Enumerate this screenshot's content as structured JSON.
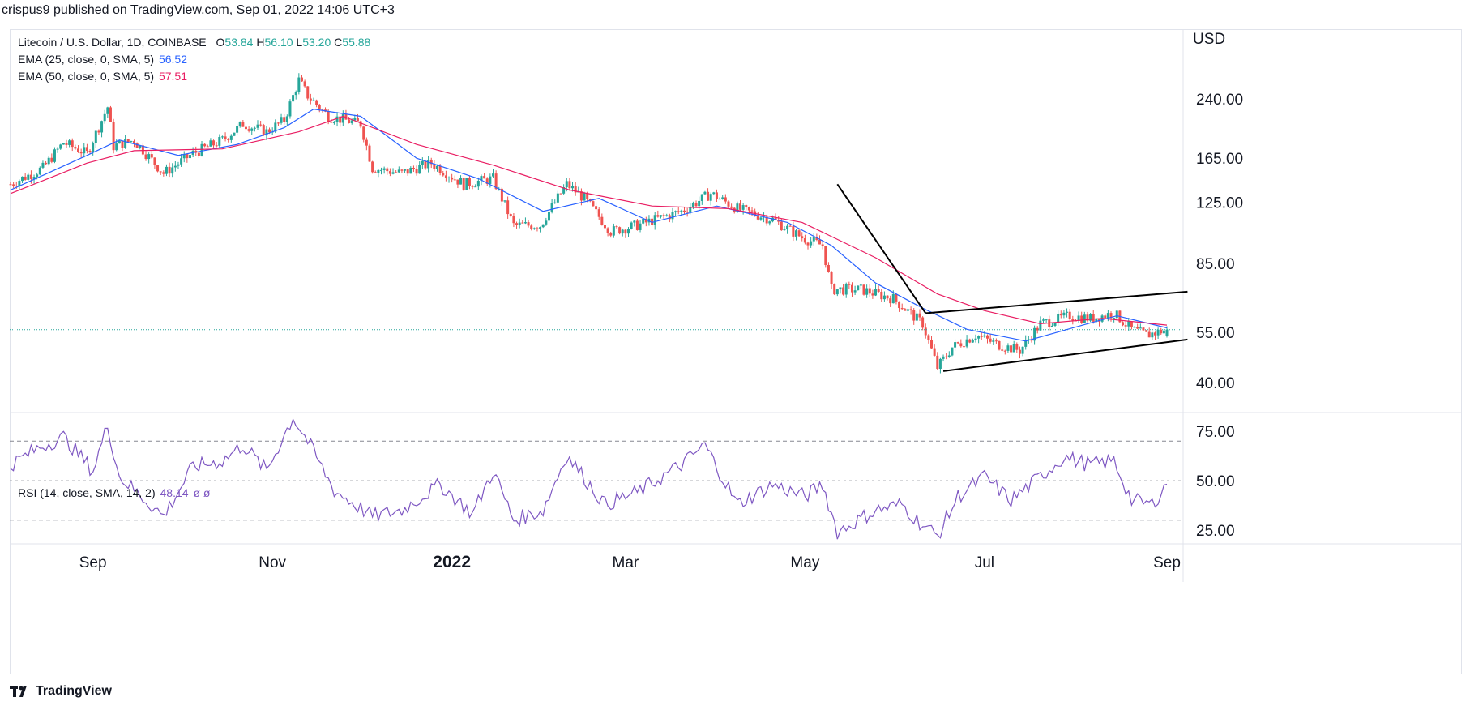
{
  "header": {
    "publish_line": "crispus9 published on TradingView.com, Sep 01, 2022 14:06 UTC+3"
  },
  "legend": {
    "symbol": "Litecoin / U.S. Dollar, 1D, COINBASE",
    "open_label": "O",
    "open": "53.84",
    "high_label": "H",
    "high": "56.10",
    "low_label": "L",
    "low": "53.20",
    "close_label": "C",
    "close": "55.88",
    "ema25_label": "EMA (25, close, 0, SMA, 5)",
    "ema25_value": "56.52",
    "ema50_label": "EMA (50, close, 0, SMA, 5)",
    "ema50_value": "57.51",
    "rsi_label": "RSI (14, close, SMA, 14, 2)",
    "rsi_value": "48.14",
    "rsi_extra": "ø ø"
  },
  "footer": {
    "brand": "TradingView",
    "logo_icon": "tradingview-logo-icon"
  },
  "colors": {
    "up": "#26a69a",
    "down": "#ef5350",
    "ema25": "#2962ff",
    "ema50": "#e91e63",
    "rsi": "#7e57c2",
    "trendline": "#000000",
    "grid": "#e0e3eb",
    "price_line": "#26a69a"
  },
  "chart_data": {
    "type": "candlestick",
    "currency": "USD",
    "price_ticks": [
      240,
      165,
      125,
      85,
      55,
      40
    ],
    "price_tick_labels": [
      "240.00",
      "165.00",
      "125.00",
      "85.00",
      "55.00",
      "40.00"
    ],
    "price_axis_scale": "log",
    "x_tick_labels": [
      "Sep",
      "Nov",
      "2022",
      "Mar",
      "May",
      "Jul",
      "Sep"
    ],
    "x_tick_dates": [
      "2021-09-01",
      "2021-11-01",
      "2022-01-01",
      "2022-03-01",
      "2022-05-01",
      "2022-07-01",
      "2022-09-01"
    ],
    "date_range": [
      "2021-08-04",
      "2022-09-01"
    ],
    "last_close": 55.88,
    "close_path": [
      [
        "2021-08-04",
        140
      ],
      [
        "2021-08-15",
        155
      ],
      [
        "2021-08-22",
        182
      ],
      [
        "2021-08-30",
        170
      ],
      [
        "2021-09-06",
        228
      ],
      [
        "2021-09-08",
        178
      ],
      [
        "2021-09-15",
        185
      ],
      [
        "2021-09-25",
        150
      ],
      [
        "2021-10-05",
        170
      ],
      [
        "2021-10-15",
        185
      ],
      [
        "2021-10-22",
        205
      ],
      [
        "2021-10-30",
        195
      ],
      [
        "2021-11-05",
        210
      ],
      [
        "2021-11-10",
        270
      ],
      [
        "2021-11-13",
        245
      ],
      [
        "2021-11-20",
        215
      ],
      [
        "2021-12-01",
        205
      ],
      [
        "2021-12-05",
        155
      ],
      [
        "2021-12-15",
        150
      ],
      [
        "2021-12-25",
        160
      ],
      [
        "2022-01-05",
        140
      ],
      [
        "2022-01-15",
        145
      ],
      [
        "2022-01-22",
        108
      ],
      [
        "2022-01-31",
        108
      ],
      [
        "2022-02-09",
        140
      ],
      [
        "2022-02-15",
        128
      ],
      [
        "2022-02-24",
        104
      ],
      [
        "2022-03-05",
        108
      ],
      [
        "2022-03-20",
        118
      ],
      [
        "2022-03-30",
        132
      ],
      [
        "2022-04-08",
        120
      ],
      [
        "2022-04-20",
        112
      ],
      [
        "2022-04-30",
        100
      ],
      [
        "2022-05-07",
        95
      ],
      [
        "2022-05-10",
        72
      ],
      [
        "2022-05-20",
        72
      ],
      [
        "2022-05-31",
        68
      ],
      [
        "2022-06-10",
        58
      ],
      [
        "2022-06-15",
        44
      ],
      [
        "2022-06-20",
        50
      ],
      [
        "2022-06-28",
        54
      ],
      [
        "2022-07-05",
        51
      ],
      [
        "2022-07-13",
        49
      ],
      [
        "2022-07-20",
        58
      ],
      [
        "2022-07-30",
        61
      ],
      [
        "2022-08-06",
        60
      ],
      [
        "2022-08-14",
        62
      ],
      [
        "2022-08-20",
        56
      ],
      [
        "2022-08-25",
        54
      ],
      [
        "2022-09-01",
        55.88
      ]
    ],
    "ema25_path": [
      [
        "2021-08-04",
        135
      ],
      [
        "2021-08-30",
        168
      ],
      [
        "2021-09-10",
        185
      ],
      [
        "2021-09-30",
        168
      ],
      [
        "2021-10-20",
        180
      ],
      [
        "2021-11-05",
        200
      ],
      [
        "2021-11-15",
        225
      ],
      [
        "2021-12-01",
        215
      ],
      [
        "2021-12-20",
        165
      ],
      [
        "2022-01-10",
        145
      ],
      [
        "2022-02-01",
        118
      ],
      [
        "2022-02-20",
        128
      ],
      [
        "2022-03-10",
        110
      ],
      [
        "2022-04-01",
        122
      ],
      [
        "2022-04-25",
        110
      ],
      [
        "2022-05-10",
        95
      ],
      [
        "2022-05-25",
        75
      ],
      [
        "2022-06-10",
        64
      ],
      [
        "2022-06-25",
        56
      ],
      [
        "2022-07-15",
        52
      ],
      [
        "2022-08-05",
        58
      ],
      [
        "2022-08-15",
        61
      ],
      [
        "2022-09-01",
        56.52
      ]
    ],
    "ema50_path": [
      [
        "2021-08-04",
        132
      ],
      [
        "2021-08-30",
        160
      ],
      [
        "2021-09-15",
        173
      ],
      [
        "2021-10-15",
        175
      ],
      [
        "2021-11-10",
        195
      ],
      [
        "2021-11-25",
        215
      ],
      [
        "2021-12-20",
        180
      ],
      [
        "2022-01-15",
        158
      ],
      [
        "2022-02-10",
        135
      ],
      [
        "2022-03-10",
        122
      ],
      [
        "2022-04-05",
        120
      ],
      [
        "2022-04-30",
        110
      ],
      [
        "2022-05-25",
        88
      ],
      [
        "2022-06-15",
        70
      ],
      [
        "2022-07-01",
        63
      ],
      [
        "2022-07-20",
        58
      ],
      [
        "2022-08-10",
        60
      ],
      [
        "2022-09-01",
        57.51
      ]
    ],
    "trendlines": [
      {
        "from": [
          "2022-05-12",
          140
        ],
        "to": [
          "2022-06-11",
          62
        ]
      },
      {
        "from": [
          "2022-06-11",
          62
        ],
        "to": [
          "2022-09-08",
          71
        ]
      },
      {
        "from": [
          "2022-06-17",
          43
        ],
        "to": [
          "2022-09-08",
          52.5
        ]
      }
    ],
    "rsi": {
      "levels": [
        70,
        50,
        30
      ],
      "ticks": [
        75,
        50,
        25
      ],
      "tick_labels": [
        "75.00",
        "50.00",
        "25.00"
      ],
      "last": 48.14,
      "path": [
        [
          "2021-08-04",
          58
        ],
        [
          "2021-08-14",
          67
        ],
        [
          "2021-08-22",
          72
        ],
        [
          "2021-09-01",
          55
        ],
        [
          "2021-09-06",
          78
        ],
        [
          "2021-09-10",
          52
        ],
        [
          "2021-09-25",
          32
        ],
        [
          "2021-10-05",
          57
        ],
        [
          "2021-10-15",
          60
        ],
        [
          "2021-10-22",
          68
        ],
        [
          "2021-10-30",
          55
        ],
        [
          "2021-11-08",
          82
        ],
        [
          "2021-11-13",
          70
        ],
        [
          "2021-11-22",
          45
        ],
        [
          "2021-12-05",
          32
        ],
        [
          "2021-12-15",
          35
        ],
        [
          "2021-12-28",
          48
        ],
        [
          "2022-01-08",
          33
        ],
        [
          "2022-01-15",
          55
        ],
        [
          "2022-01-22",
          30
        ],
        [
          "2022-02-01",
          35
        ],
        [
          "2022-02-09",
          63
        ],
        [
          "2022-02-22",
          38
        ],
        [
          "2022-03-05",
          44
        ],
        [
          "2022-03-20",
          58
        ],
        [
          "2022-03-28",
          68
        ],
        [
          "2022-04-08",
          38
        ],
        [
          "2022-04-20",
          48
        ],
        [
          "2022-05-01",
          42
        ],
        [
          "2022-05-07",
          48
        ],
        [
          "2022-05-12",
          24
        ],
        [
          "2022-05-25",
          35
        ],
        [
          "2022-06-03",
          38
        ],
        [
          "2022-06-08",
          30
        ],
        [
          "2022-06-15",
          22
        ],
        [
          "2022-06-22",
          42
        ],
        [
          "2022-07-01",
          52
        ],
        [
          "2022-07-10",
          40
        ],
        [
          "2022-07-20",
          52
        ],
        [
          "2022-07-28",
          62
        ],
        [
          "2022-08-06",
          58
        ],
        [
          "2022-08-14",
          60
        ],
        [
          "2022-08-20",
          40
        ],
        [
          "2022-08-27",
          38
        ],
        [
          "2022-09-01",
          48.14
        ]
      ]
    }
  }
}
